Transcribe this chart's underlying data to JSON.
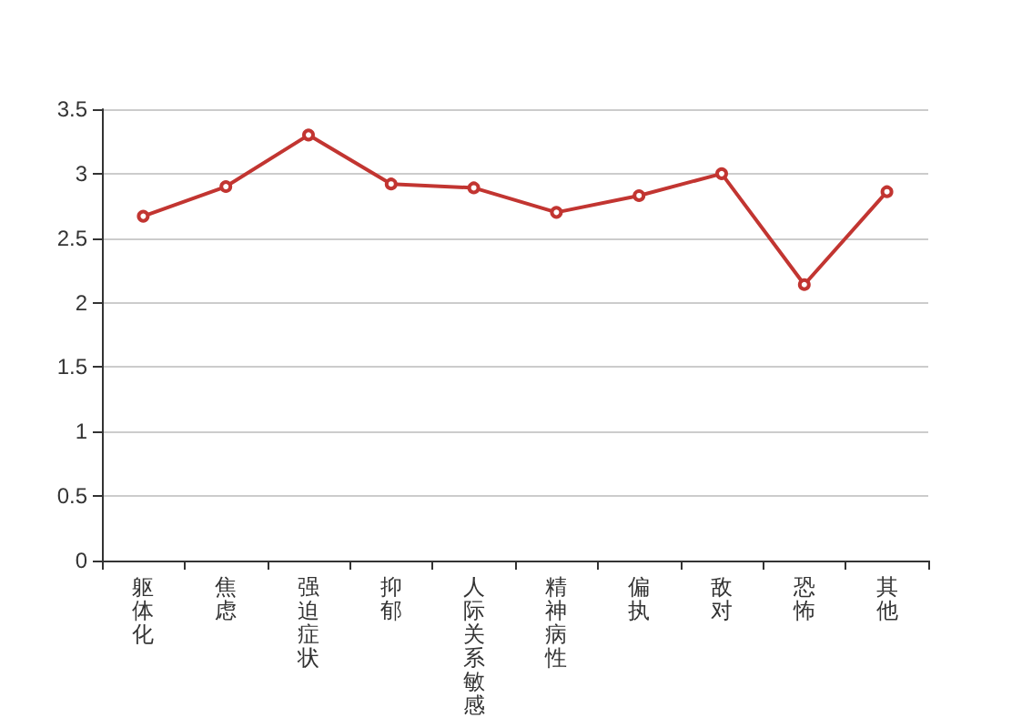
{
  "chart_data": {
    "type": "line",
    "categories": [
      "躯体化",
      "焦虑",
      "强迫症状",
      "抑郁",
      "人际关系敏感",
      "精神病性",
      "偏执",
      "敌对",
      "恐怖",
      "其他"
    ],
    "series": [
      {
        "color": "#c23531",
        "values": [
          2.67,
          2.9,
          3.3,
          2.92,
          2.89,
          2.7,
          2.83,
          3.0,
          2.14,
          2.86
        ]
      }
    ],
    "ylim": [
      0,
      3.5
    ],
    "yticks": [
      0,
      0.5,
      1,
      1.5,
      2,
      2.5,
      3,
      3.5
    ],
    "grid": "y",
    "marker": "circle",
    "line_style": "solid"
  }
}
